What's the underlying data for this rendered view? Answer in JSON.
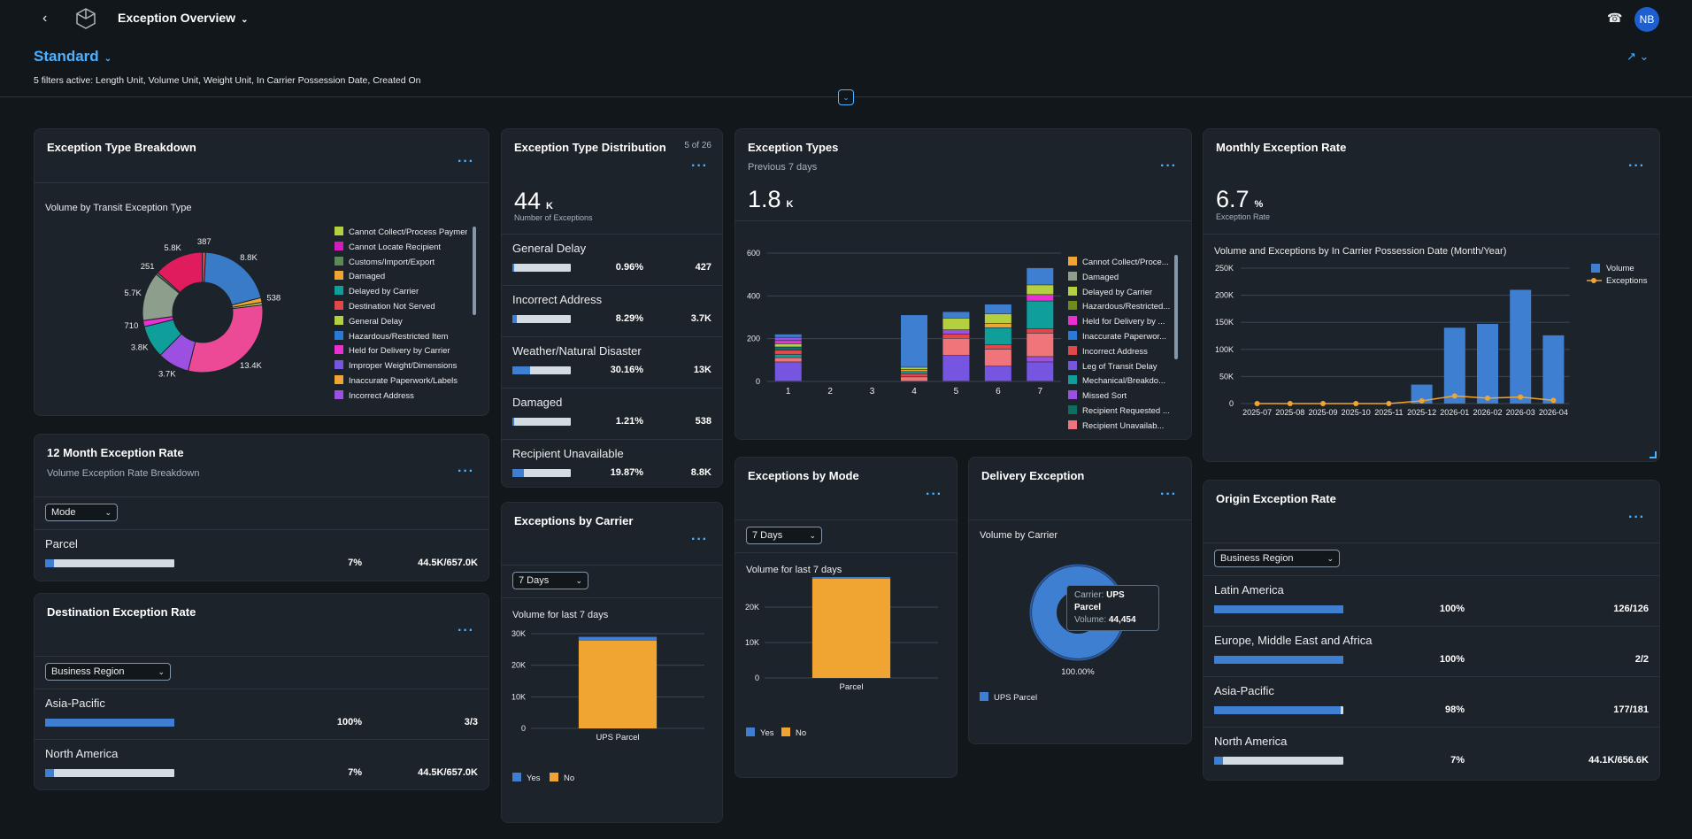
{
  "topbar": {
    "back_icon": "chevron-left-icon",
    "title": "Exception Overview",
    "support_icon": "headset-icon",
    "avatar": "NB"
  },
  "header": {
    "variant": "Standard",
    "filters": "5 filters active: Length Unit, Volume Unit, Weight Unit, In Carrier Possession Date, Created On"
  },
  "colors": {
    "accent": "#4db1ff",
    "blue": "#3f7fd1",
    "orange": "#f0a432"
  },
  "breakdown": {
    "title": "Exception Type Breakdown",
    "subtitle": "Volume by Transit Exception Type",
    "legend": [
      {
        "label": "Cannot Collect/Process Payment",
        "color": "#b4cf3f"
      },
      {
        "label": "Cannot Locate Recipient",
        "color": "#d41bbd"
      },
      {
        "label": "Customs/Import/Export",
        "color": "#5b8a58"
      },
      {
        "label": "Damaged",
        "color": "#f0a432"
      },
      {
        "label": "Delayed by Carrier",
        "color": "#0f9e9a"
      },
      {
        "label": "Destination Not Served",
        "color": "#e2474b"
      },
      {
        "label": "General Delay",
        "color": "#b4cf3f"
      },
      {
        "label": "Hazardous/Restricted Item",
        "color": "#2a7ad8"
      },
      {
        "label": "Held for Delivery by Carrier",
        "color": "#ec2fd3"
      },
      {
        "label": "Improper Weight/Dimensions",
        "color": "#7655e0"
      },
      {
        "label": "Inaccurate Paperwork/Labels",
        "color": "#f0a432"
      },
      {
        "label": "Incorrect Address",
        "color": "#9b50e2"
      }
    ],
    "chart_data": {
      "type": "pie",
      "slices": [
        {
          "label": "8.8K",
          "value": 8800,
          "color": "#3a7bc8"
        },
        {
          "label": "538",
          "value": 538,
          "color": "#f0a432"
        },
        {
          "label": "",
          "value": 300,
          "color": "#b4cf3f"
        },
        {
          "label": "13.4K",
          "value": 13400,
          "color": "#ec4a97"
        },
        {
          "label": "3.7K",
          "value": 3700,
          "color": "#9b50e2"
        },
        {
          "label": "3.8K",
          "value": 3800,
          "color": "#0f9e9a"
        },
        {
          "label": "710",
          "value": 710,
          "color": "#ec2fd3"
        },
        {
          "label": "5.7K",
          "value": 5700,
          "color": "#8e9e8d"
        },
        {
          "label": "251",
          "value": 251,
          "color": "#5b8a58"
        },
        {
          "label": "5.8K",
          "value": 5800,
          "color": "#e01b5e"
        },
        {
          "label": "387",
          "value": 387,
          "color": "#e2474b"
        }
      ]
    }
  },
  "twelve": {
    "title": "12 Month Exception Rate",
    "subtitle": "Volume Exception Rate Breakdown",
    "select": "Mode",
    "rows": [
      {
        "name": "Parcel",
        "pct": "7%",
        "val": "44.5K/657.0K",
        "frac": 0.07
      }
    ]
  },
  "destination": {
    "title": "Destination Exception Rate",
    "select": "Business Region",
    "rows": [
      {
        "name": "Asia-Pacific",
        "pct": "100%",
        "val": "3/3",
        "frac": 1
      },
      {
        "name": "North America",
        "pct": "7%",
        "val": "44.5K/657.0K",
        "frac": 0.07
      }
    ]
  },
  "distribution": {
    "title": "Exception Type Distribution",
    "count": "5 of 26",
    "kpi": "44",
    "unit": "K",
    "kpi_label": "Number of Exceptions",
    "rows": [
      {
        "name": "General Delay",
        "pct": "0.96%",
        "val": "427",
        "frac": 0.0096
      },
      {
        "name": "Incorrect Address",
        "pct": "8.29%",
        "val": "3.7K",
        "frac": 0.0829
      },
      {
        "name": "Weather/Natural Disaster",
        "pct": "30.16%",
        "val": "13K",
        "frac": 0.3016
      },
      {
        "name": "Damaged",
        "pct": "1.21%",
        "val": "538",
        "frac": 0.0121
      },
      {
        "name": "Recipient Unavailable",
        "pct": "19.87%",
        "val": "8.8K",
        "frac": 0.1987
      }
    ]
  },
  "carrier": {
    "title": "Exceptions by Carrier",
    "select": "7 Days",
    "subtitle": "Volume for last 7 days",
    "legend": [
      {
        "label": "Yes",
        "color": "#3f7fd1"
      },
      {
        "label": "No",
        "color": "#f0a432"
      }
    ],
    "chart_data": {
      "type": "bar",
      "categories": [
        "UPS Parcel"
      ],
      "series": [
        {
          "name": "Yes",
          "values": [
            1200
          ]
        },
        {
          "name": "No",
          "values": [
            27800
          ]
        }
      ],
      "ylim": [
        0,
        30000
      ],
      "yticks": [
        "0",
        "10K",
        "20K",
        "30K"
      ]
    }
  },
  "types": {
    "title": "Exception Types",
    "subtitle": "Previous 7 days",
    "kpi": "1.8",
    "unit": "K",
    "legend": [
      {
        "label": "Cannot Collect/Proce...",
        "color": "#f0a432"
      },
      {
        "label": "Damaged",
        "color": "#8e9e8d"
      },
      {
        "label": "Delayed by Carrier",
        "color": "#b4cf3f"
      },
      {
        "label": "Hazardous/Restricted...",
        "color": "#6f8b1f"
      },
      {
        "label": "Held for Delivery by ...",
        "color": "#ec2fd3"
      },
      {
        "label": "Inaccurate Paperwor...",
        "color": "#2a7ad8"
      },
      {
        "label": "Incorrect Address",
        "color": "#e2474b"
      },
      {
        "label": "Leg of Transit Delay",
        "color": "#7655e0"
      },
      {
        "label": "Mechanical/Breakdo...",
        "color": "#0f9e9a"
      },
      {
        "label": "Missed Sort",
        "color": "#9b50e2"
      },
      {
        "label": "Recipient Requested ...",
        "color": "#0d6e62"
      },
      {
        "label": "Recipient Unavailab...",
        "color": "#f0757a"
      }
    ],
    "chart_data": {
      "type": "bar",
      "categories": [
        "1",
        "2",
        "3",
        "4",
        "5",
        "6",
        "7"
      ],
      "ylim": [
        0,
        600
      ],
      "yticks": [
        "0",
        "200",
        "400",
        "600"
      ],
      "stacks": [
        [
          {
            "v": 90,
            "c": "#7655e0"
          },
          {
            "v": 20,
            "c": "#f0757a"
          },
          {
            "v": 15,
            "c": "#0f9e9a"
          },
          {
            "v": 20,
            "c": "#e2474b"
          },
          {
            "v": 15,
            "c": "#0d6e62"
          },
          {
            "v": 15,
            "c": "#b4cf3f"
          },
          {
            "v": 15,
            "c": "#ec2fd3"
          },
          {
            "v": 15,
            "c": "#9b50e2"
          },
          {
            "v": 15,
            "c": "#3f7fd1"
          }
        ],
        [],
        [],
        [
          {
            "v": 20,
            "c": "#f0757a"
          },
          {
            "v": 15,
            "c": "#e2474b"
          },
          {
            "v": 10,
            "c": "#0f9e9a"
          },
          {
            "v": 10,
            "c": "#f0a432"
          },
          {
            "v": 10,
            "c": "#b4cf3f"
          },
          {
            "v": 245,
            "c": "#3f7fd1"
          }
        ],
        [
          {
            "v": 120,
            "c": "#7655e0"
          },
          {
            "v": 80,
            "c": "#f0757a"
          },
          {
            "v": 20,
            "c": "#e2474b"
          },
          {
            "v": 20,
            "c": "#9b50e2"
          },
          {
            "v": 55,
            "c": "#b4cf3f"
          },
          {
            "v": 30,
            "c": "#3f7fd1"
          }
        ],
        [
          {
            "v": 70,
            "c": "#7655e0"
          },
          {
            "v": 80,
            "c": "#f0757a"
          },
          {
            "v": 20,
            "c": "#e2474b"
          },
          {
            "v": 80,
            "c": "#0f9e9a"
          },
          {
            "v": 20,
            "c": "#f0a432"
          },
          {
            "v": 45,
            "c": "#b4cf3f"
          },
          {
            "v": 45,
            "c": "#3f7fd1"
          }
        ],
        [
          {
            "v": 90,
            "c": "#7655e0"
          },
          {
            "v": 25,
            "c": "#9b50e2"
          },
          {
            "v": 110,
            "c": "#f0757a"
          },
          {
            "v": 20,
            "c": "#e2474b"
          },
          {
            "v": 130,
            "c": "#0f9e9a"
          },
          {
            "v": 30,
            "c": "#ec2fd3"
          },
          {
            "v": 45,
            "c": "#b4cf3f"
          },
          {
            "v": 80,
            "c": "#3f7fd1"
          }
        ]
      ]
    }
  },
  "mode": {
    "title": "Exceptions by Mode",
    "select": "7 Days",
    "subtitle": "Volume for last 7 days",
    "legend": [
      {
        "label": "Yes",
        "color": "#3f7fd1"
      },
      {
        "label": "No",
        "color": "#f0a432"
      }
    ],
    "chart_data": {
      "type": "bar",
      "categories": [
        "Parcel"
      ],
      "series": [
        {
          "name": "Yes",
          "values": [
            1300
          ]
        },
        {
          "name": "No",
          "values": [
            28000
          ]
        }
      ],
      "ylim": [
        0,
        30000
      ],
      "yticks": [
        "0",
        "10K",
        "20K",
        "30K"
      ]
    }
  },
  "delivery": {
    "title": "Delivery Exception",
    "subtitle": "Volume by Carrier",
    "tooltip_carrier_label": "Carrier:",
    "tooltip_carrier": "UPS Parcel",
    "tooltip_volume_label": "Volume:",
    "tooltip_volume": "44,454",
    "pct_label": "100.00%",
    "legend": [
      {
        "label": "UPS Parcel",
        "color": "#3f7fd1"
      }
    ],
    "chart_data": {
      "type": "pie",
      "slices": [
        {
          "label": "UPS Parcel",
          "value": 44454,
          "color": "#3f7fd1"
        }
      ]
    }
  },
  "monthly": {
    "title": "Monthly Exception Rate",
    "kpi": "6.7",
    "unit": "%",
    "kpi_label": "Exception Rate",
    "subtitle": "Volume and Exceptions by In Carrier Possession Date (Month/Year)",
    "legend": [
      {
        "label": "Volume",
        "color": "#3f7fd1"
      },
      {
        "label": "Exceptions",
        "color": "#f0a432"
      }
    ],
    "chart_data": {
      "type": "bar",
      "categories": [
        "2025-07",
        "2025-08",
        "2025-09",
        "2025-10",
        "2025-11",
        "2025-12",
        "2026-01",
        "2026-02",
        "2026-03",
        "2026-04"
      ],
      "series": [
        {
          "name": "Volume",
          "values": [
            0,
            0,
            0,
            0,
            0,
            35000,
            140000,
            147000,
            210000,
            126000
          ]
        },
        {
          "name": "Exceptions",
          "values": [
            0,
            0,
            0,
            0,
            0,
            5000,
            14000,
            10000,
            12000,
            6000
          ]
        }
      ],
      "ylim": [
        0,
        250000
      ],
      "yticks": [
        "0",
        "50K",
        "100K",
        "150K",
        "200K",
        "250K"
      ]
    }
  },
  "origin": {
    "title": "Origin Exception Rate",
    "select": "Business Region",
    "rows": [
      {
        "name": "Latin America",
        "pct": "100%",
        "val": "126/126",
        "frac": 1
      },
      {
        "name": "Europe, Middle East and Africa",
        "pct": "100%",
        "val": "2/2",
        "frac": 1
      },
      {
        "name": "Asia-Pacific",
        "pct": "98%",
        "val": "177/181",
        "frac": 0.98
      },
      {
        "name": "North America",
        "pct": "7%",
        "val": "44.1K/656.6K",
        "frac": 0.07
      }
    ]
  }
}
